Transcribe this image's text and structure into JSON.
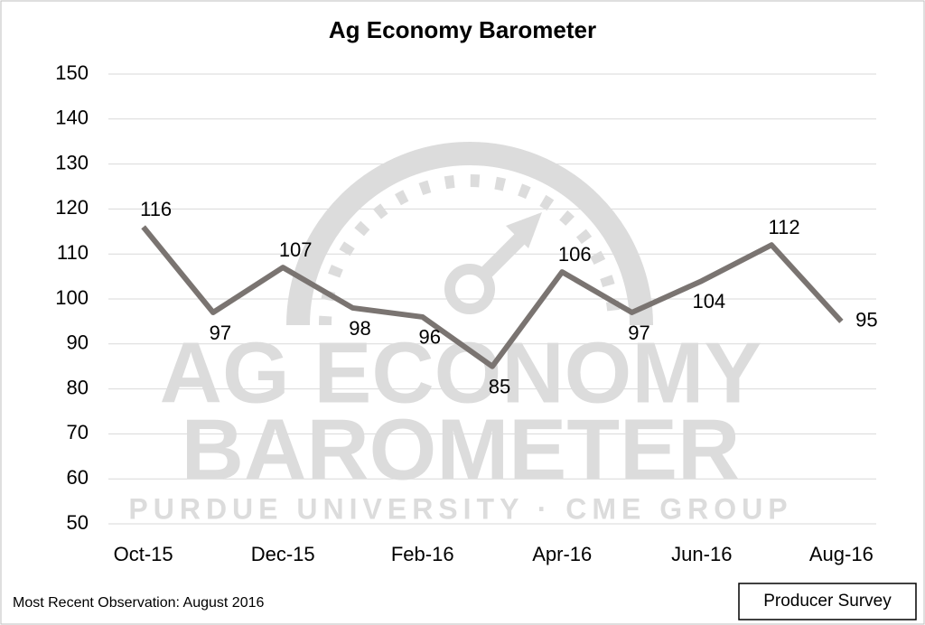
{
  "chart_data": {
    "type": "line",
    "title": "Ag Economy Barometer",
    "categories": [
      "Oct-15",
      null,
      "Dec-15",
      null,
      "Feb-16",
      null,
      "Apr-16",
      null,
      "Jun-16",
      null,
      "Aug-16"
    ],
    "values": [
      116,
      97,
      107,
      98,
      96,
      85,
      106,
      97,
      104,
      112,
      95
    ],
    "color": "#7a7471",
    "ylim": [
      50,
      150
    ],
    "yticks": [
      50,
      60,
      70,
      80,
      90,
      100,
      110,
      120,
      130,
      140,
      150
    ],
    "grid": true,
    "watermark": [
      "AG ECONOMY",
      "BAROMETER",
      "PURDUE UNIVERSITY · CME GROUP"
    ],
    "footnote": "Most Recent Observation: August 2016",
    "source_box": "Producer Survey"
  }
}
